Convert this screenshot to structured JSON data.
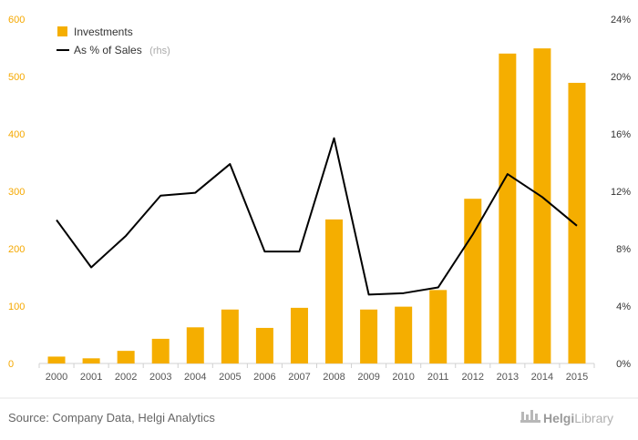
{
  "chart_data": {
    "type": "bar",
    "categories": [
      "2000",
      "2001",
      "2002",
      "2003",
      "2004",
      "2005",
      "2006",
      "2007",
      "2008",
      "2009",
      "2010",
      "2011",
      "2012",
      "2013",
      "2014",
      "2015"
    ],
    "series": [
      {
        "name": "Investments",
        "type": "bar",
        "axis": "left",
        "color": "#f5ae00",
        "values": [
          12,
          9,
          22,
          43,
          63,
          94,
          62,
          97,
          251,
          94,
          99,
          128,
          287,
          540,
          549,
          489
        ]
      },
      {
        "name": "As % of Sales",
        "type": "line",
        "axis": "right",
        "color": "#000000",
        "values": [
          10.0,
          6.7,
          8.9,
          11.7,
          11.9,
          13.9,
          7.8,
          7.8,
          15.7,
          4.8,
          4.9,
          5.3,
          9.0,
          13.2,
          11.6,
          9.6
        ]
      }
    ],
    "y_left": {
      "ylim": [
        0,
        600
      ],
      "ticks": [
        "0",
        "100",
        "200",
        "300",
        "400",
        "500",
        "600"
      ]
    },
    "y_right": {
      "ylim": [
        0,
        24
      ],
      "ticks": [
        "0%",
        "4%",
        "8%",
        "12%",
        "16%",
        "20%",
        "24%"
      ]
    },
    "legend": {
      "position": "top-left",
      "items": [
        {
          "label": "Investments",
          "suffix": ""
        },
        {
          "label": "As % of Sales",
          "suffix": "(rhs)"
        }
      ]
    },
    "grid": false
  },
  "source": "Source: Company Data, Helgi Analytics",
  "brand": {
    "prefix": "Helgi",
    "suffix": "Library"
  }
}
